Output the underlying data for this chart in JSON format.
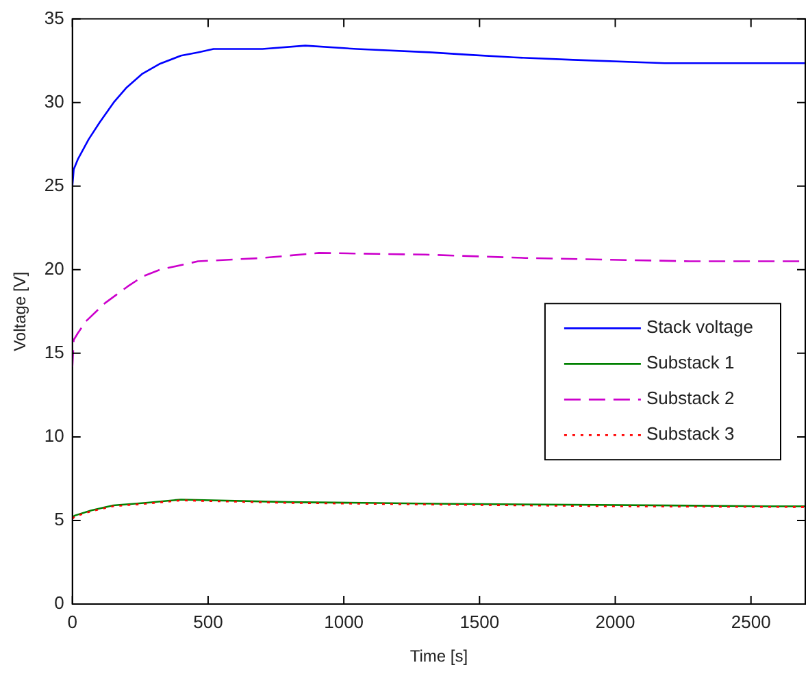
{
  "chart_data": {
    "type": "line",
    "xlabel": "Time [s]",
    "ylabel": "Voltage [V]",
    "xlim": [
      0,
      2700
    ],
    "xticks": [
      0,
      500,
      1000,
      1500,
      2000,
      2500
    ],
    "ylim": [
      0,
      35
    ],
    "yticks": [
      0,
      5,
      10,
      15,
      20,
      25,
      30,
      35
    ],
    "grid": false,
    "legend": "right",
    "marker": "none",
    "series": [
      {
        "name": "Stack voltage",
        "color": "#0000ff",
        "line_style": "solid",
        "x": [
          0,
          5,
          20,
          60,
          100,
          152,
          200,
          256,
          320,
          400,
          463,
          520,
          700,
          858,
          1048,
          1316,
          1466,
          1626,
          1845,
          2182,
          2700
        ],
        "values": [
          25,
          26,
          26.6,
          27.8,
          28.8,
          30,
          30.9,
          31.7,
          32.3,
          32.8,
          33.0,
          33.2,
          33.2,
          33.4,
          33.2,
          33.0,
          32.85,
          32.7,
          32.55,
          32.35,
          32.35
        ]
      },
      {
        "name": "Substack 1",
        "color": "#008000",
        "line_style": "solid",
        "x": [
          0,
          10,
          70,
          150,
          270,
          400,
          797,
          1342,
          2575,
          2700
        ],
        "values": [
          5.2,
          5.3,
          5.6,
          5.9,
          6.05,
          6.25,
          6.1,
          6.0,
          5.85,
          5.85
        ]
      },
      {
        "name": "Substack 2",
        "color": "#cc00cc",
        "line_style": "dashed",
        "x": [
          0,
          5,
          20,
          49,
          120,
          204,
          260,
          323,
          463,
          700,
          908,
          1300,
          1669,
          2275,
          2700
        ],
        "values": [
          14.2,
          15.8,
          16.2,
          16.9,
          18,
          19,
          19.6,
          20.0,
          20.5,
          20.7,
          21.0,
          20.9,
          20.7,
          20.5,
          20.5
        ]
      },
      {
        "name": "Substack 3",
        "color": "#ff0000",
        "line_style": "dotted",
        "x": [
          0,
          10,
          70,
          150,
          270,
          400,
          797,
          1342,
          1980,
          2700
        ],
        "values": [
          5.1,
          5.25,
          5.55,
          5.85,
          6.0,
          6.2,
          6.05,
          5.95,
          5.85,
          5.8
        ]
      }
    ]
  }
}
